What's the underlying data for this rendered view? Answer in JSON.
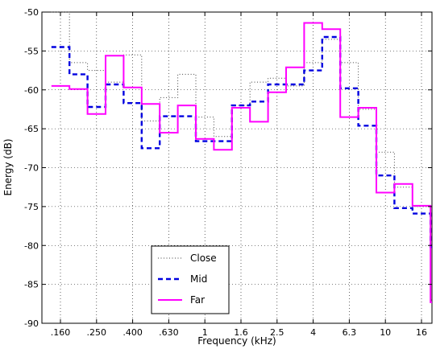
{
  "chart_data": {
    "type": "line",
    "xlabel": "Frequency (kHz)",
    "ylabel": "Energy (dB)",
    "ylim": [
      -90,
      -50
    ],
    "yticks": [
      -50,
      -55,
      -60,
      -65,
      -70,
      -75,
      -80,
      -85,
      -90
    ],
    "categories": [
      ".160",
      ".200",
      ".250",
      ".315",
      ".400",
      ".500",
      ".630",
      ".800",
      "1",
      "1.25",
      "1.6",
      "2",
      "2.5",
      "3.15",
      "4",
      "5",
      "6.3",
      "8",
      "10",
      "12.5",
      "16",
      "20"
    ],
    "x_tick_labels": [
      ".160",
      ".250",
      ".400",
      ".630",
      "1",
      "1.6",
      "2.5",
      "4",
      "6.3",
      "10",
      "16"
    ],
    "grid": true,
    "legend_position": "bottom-left",
    "step_plot": true,
    "series": [
      {
        "name": "Close",
        "color": "#404040",
        "style": "dotted",
        "values": [
          -50,
          -56.5,
          -57.5,
          -59,
          -55.5,
          -64,
          -61,
          -58,
          -63.5,
          -66,
          -62,
          -59,
          -58.5,
          -59.5,
          -56.5,
          -53.5,
          -56.5,
          -62.5,
          -68,
          -72.5,
          -75,
          -87
        ]
      },
      {
        "name": "Mid",
        "color": "#0000e0",
        "style": "dashed",
        "values": [
          -54.5,
          -58,
          -62.2,
          -59.3,
          -61.7,
          -67.5,
          -63.4,
          -63.4,
          -66.6,
          -66.6,
          -62,
          -61.5,
          -59.3,
          -59.3,
          -57.5,
          -53.2,
          -59.8,
          -64.6,
          -71,
          -75.2,
          -75.9,
          -80.2
        ]
      },
      {
        "name": "Far",
        "color": "#ff00ff",
        "style": "solid",
        "values": [
          -59.5,
          -59.9,
          -63.1,
          -55.6,
          -59.7,
          -61.8,
          -65.5,
          -62,
          -66.3,
          -67.7,
          -62.3,
          -64.1,
          -60.3,
          -57.1,
          -51.4,
          -52.2,
          -63.5,
          -62.3,
          -73.2,
          -72.1,
          -74.9,
          -87.3
        ]
      }
    ]
  }
}
